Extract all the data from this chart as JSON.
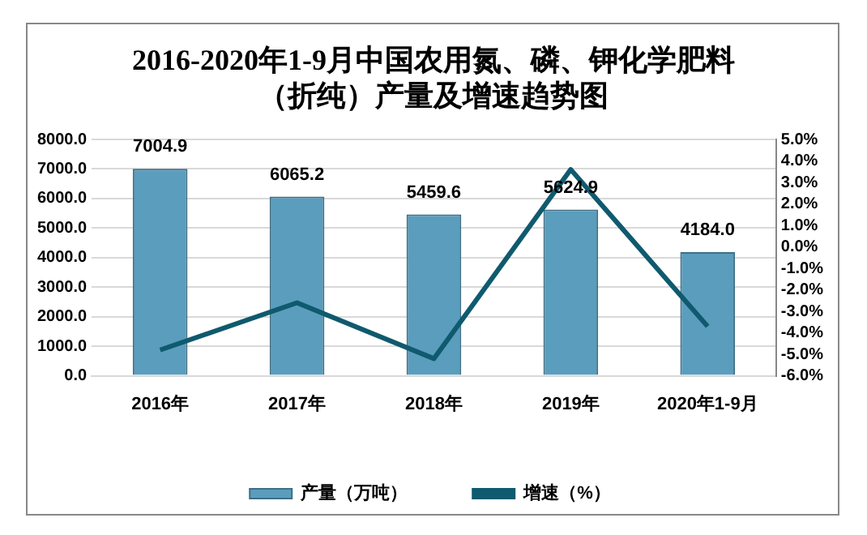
{
  "chart_data": {
    "type": "bar",
    "title": "2016-2020年1-9月中国农用氮、磷、钾化学肥料（折纯）产量及增速趋势图",
    "categories": [
      "2016年",
      "2017年",
      "2018年",
      "2019年",
      "2020年1-9月"
    ],
    "series": [
      {
        "name": "产量（万吨）",
        "color": "#5b9dbd",
        "values": [
          7004.9,
          6065.2,
          5459.6,
          5624.9,
          4184.0
        ],
        "value_labels": [
          "7004.9",
          "6065.2",
          "5459.6",
          "5624.9",
          "4184.0"
        ]
      },
      {
        "name": "增速（%）",
        "type": "line",
        "axis": "y2",
        "color": "#0f5a6e",
        "values": [
          -4.8,
          -2.6,
          -5.2,
          3.6,
          -3.7
        ]
      }
    ],
    "ylim": [
      0,
      8000
    ],
    "yticks": [
      {
        "value": 0,
        "label": "0.0"
      },
      {
        "value": 1000,
        "label": "1000.0"
      },
      {
        "value": 2000,
        "label": "2000.0"
      },
      {
        "value": 3000,
        "label": "3000.0"
      },
      {
        "value": 4000,
        "label": "4000.0"
      },
      {
        "value": 5000,
        "label": "5000.0"
      },
      {
        "value": 6000,
        "label": "6000.0"
      },
      {
        "value": 7000,
        "label": "7000.0"
      },
      {
        "value": 8000,
        "label": "8000.0"
      }
    ],
    "y2lim": [
      -6,
      5
    ],
    "y2ticks": [
      {
        "value": -6,
        "label": "-6.0%"
      },
      {
        "value": -5,
        "label": "-5.0%"
      },
      {
        "value": -4,
        "label": "-4.0%"
      },
      {
        "value": -3,
        "label": "-3.0%"
      },
      {
        "value": -2,
        "label": "-2.0%"
      },
      {
        "value": -1,
        "label": "-1.0%"
      },
      {
        "value": 0,
        "label": "0.0%"
      },
      {
        "value": 1,
        "label": "1.0%"
      },
      {
        "value": 2,
        "label": "2.0%"
      },
      {
        "value": 3,
        "label": "3.0%"
      },
      {
        "value": 4,
        "label": "4.0%"
      },
      {
        "value": 5,
        "label": "5.0%"
      }
    ],
    "grid": "y",
    "legend": "bottom",
    "marker": "none",
    "line_style": "solid"
  }
}
